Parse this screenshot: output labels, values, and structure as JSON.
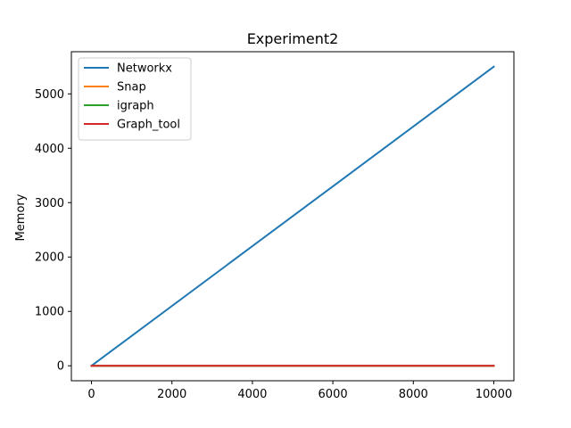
{
  "chart_data": {
    "type": "line",
    "title": "Experiment2",
    "xlabel": "",
    "ylabel": "Memory",
    "xlim": [
      -500,
      10500
    ],
    "ylim": [
      -275,
      5775
    ],
    "xticks": [
      0,
      2000,
      4000,
      6000,
      8000,
      10000
    ],
    "yticks": [
      0,
      1000,
      2000,
      3000,
      4000,
      5000
    ],
    "grid": false,
    "legend_position": "top-left",
    "series": [
      {
        "name": "Networkx",
        "color": "#1f77b4",
        "x": [
          0,
          10000
        ],
        "y": [
          0,
          5500
        ]
      },
      {
        "name": "Snap",
        "color": "#ff7f0e",
        "x": [
          0,
          10000
        ],
        "y": [
          0,
          0
        ]
      },
      {
        "name": "igraph",
        "color": "#2ca02c",
        "x": [
          0,
          10000
        ],
        "y": [
          0,
          0
        ]
      },
      {
        "name": "Graph_tool",
        "color": "#d62728",
        "x": [
          0,
          10000
        ],
        "y": [
          0,
          0
        ]
      }
    ]
  }
}
